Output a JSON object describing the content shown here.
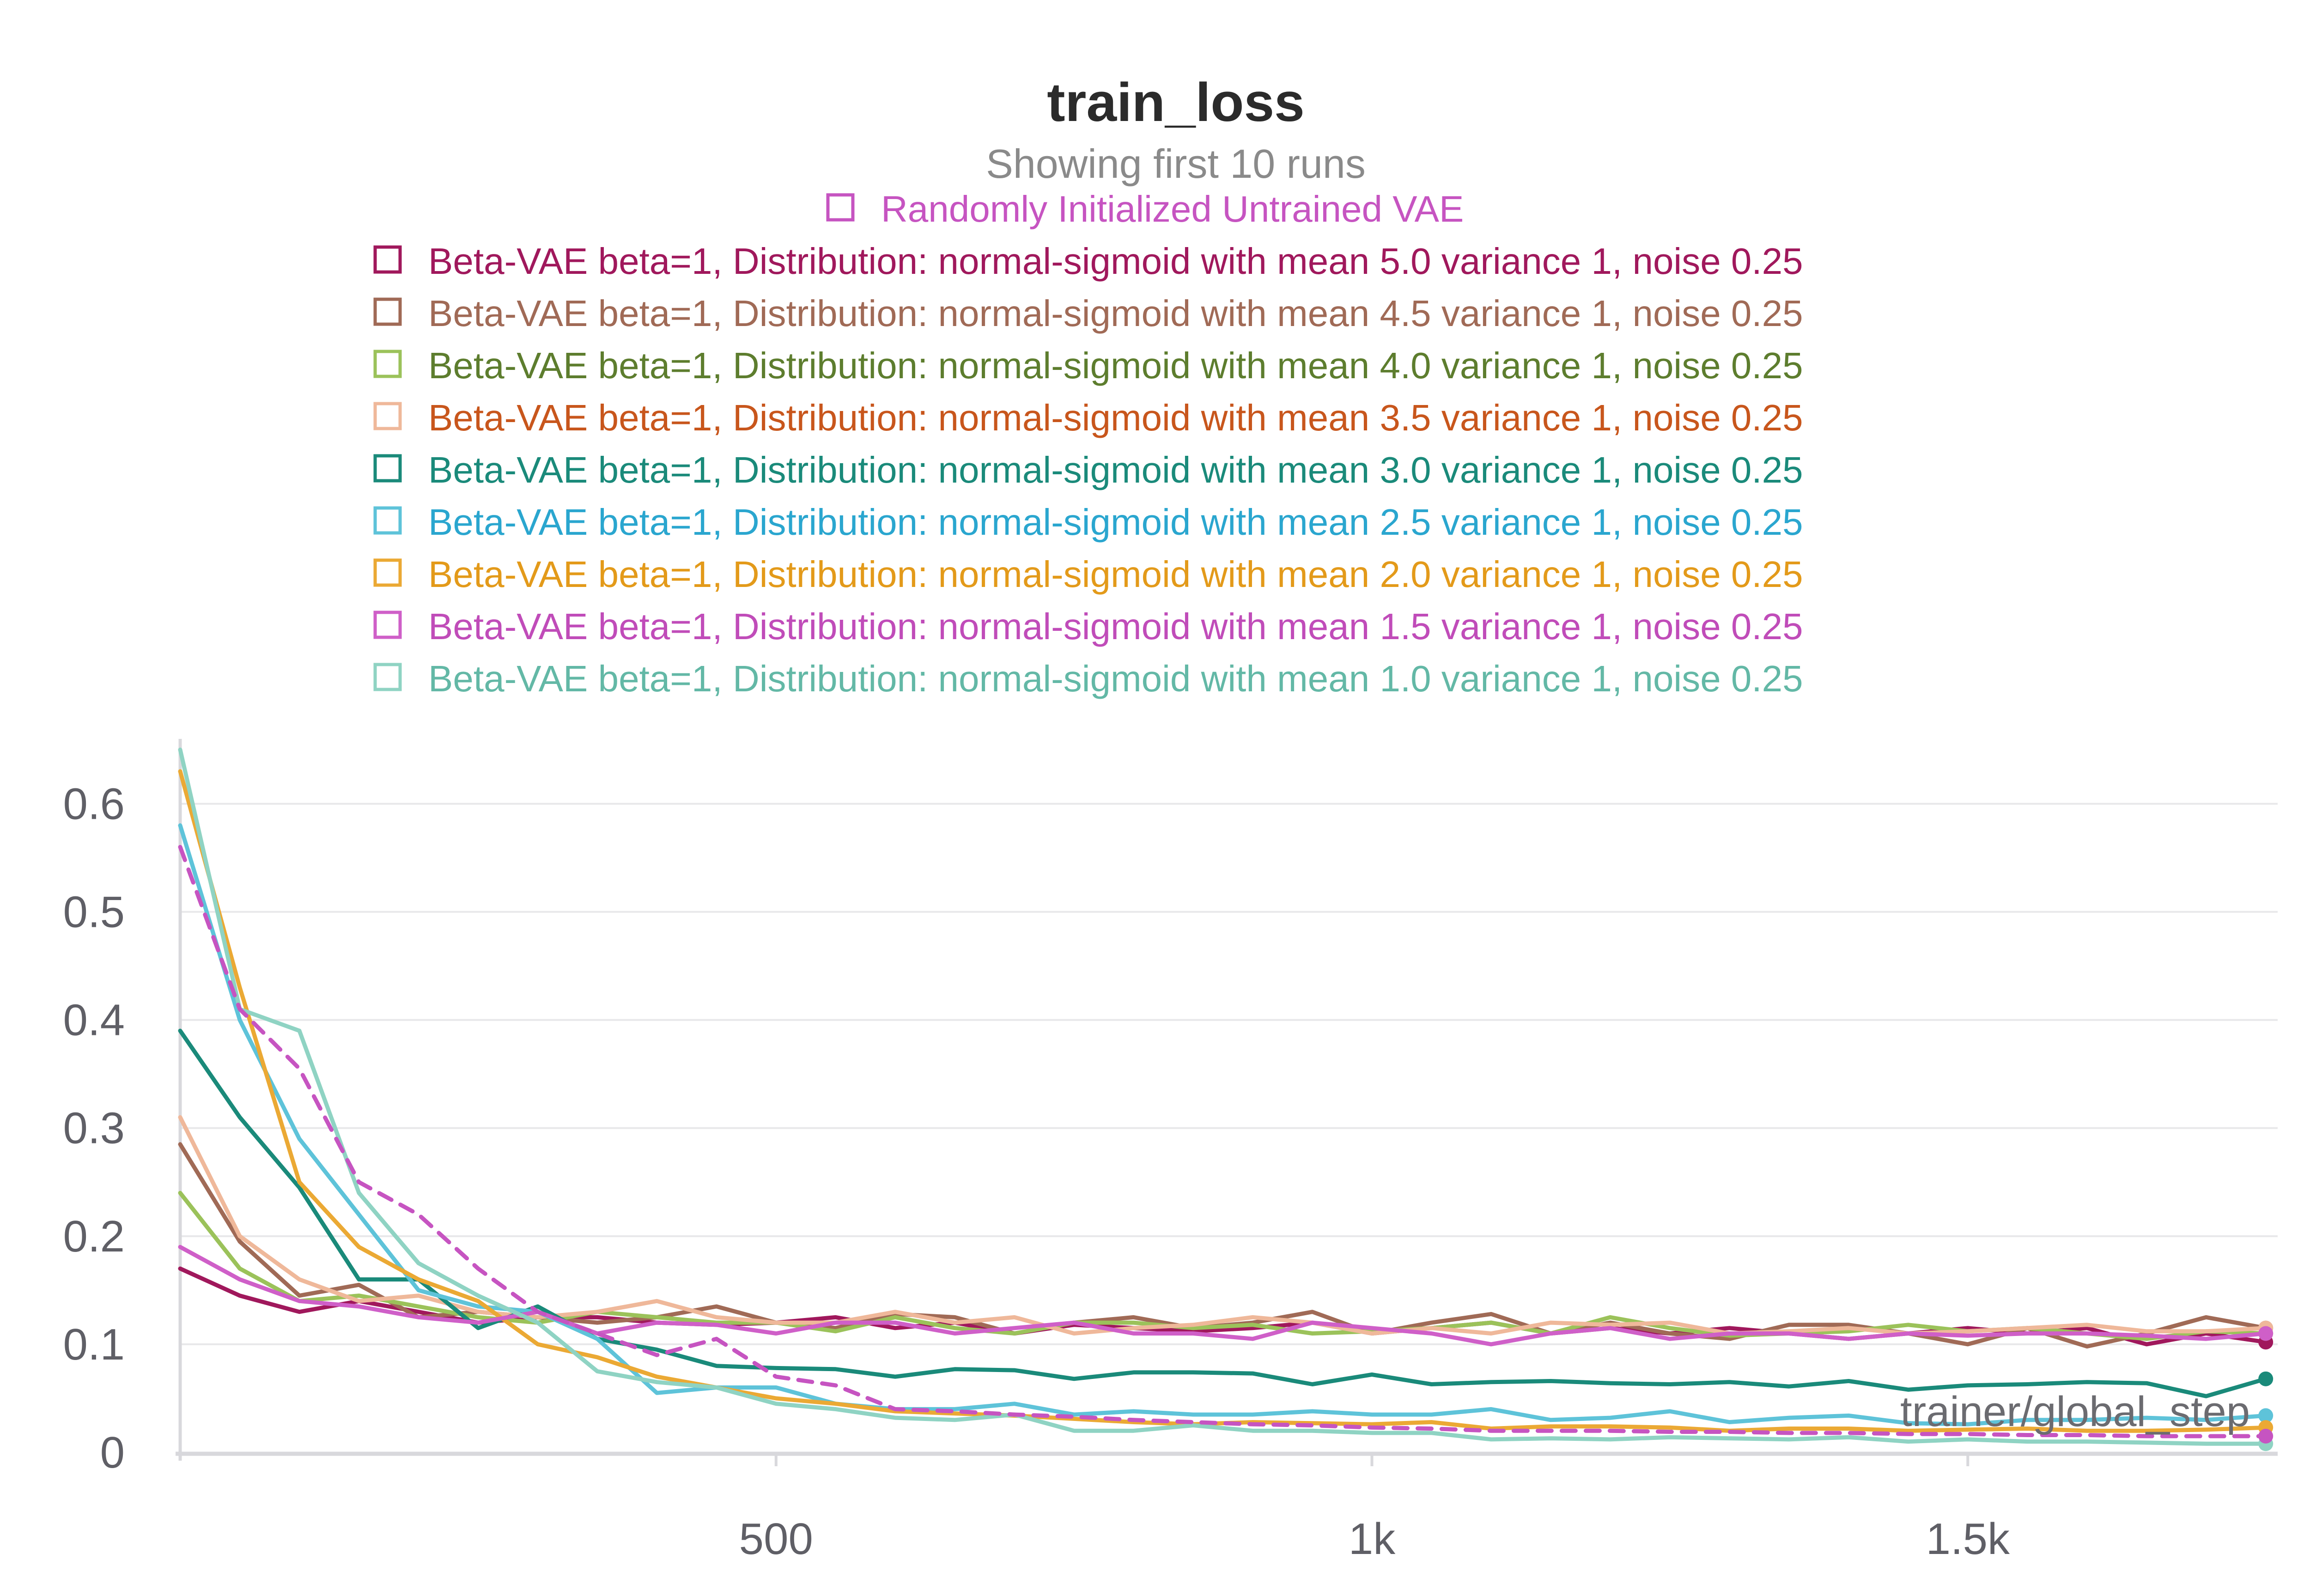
{
  "chart_data": {
    "type": "line",
    "title": "train_loss",
    "subtitle": "Showing first 10 runs",
    "xlabel": "trainer/global_step",
    "ylabel": "",
    "xlim": [
      0,
      1760
    ],
    "ylim": [
      0,
      0.66
    ],
    "x_ticks": [
      500,
      1000,
      1500
    ],
    "x_tick_labels": [
      "500",
      "1k",
      "1.5k"
    ],
    "y_ticks": [
      0,
      0.1,
      0.2,
      0.3,
      0.4,
      0.5,
      0.6
    ],
    "y_tick_labels": [
      "0",
      "0.1",
      "0.2",
      "0.3",
      "0.4",
      "0.5",
      "0.6"
    ],
    "grid": true,
    "legend_position": "top",
    "x": [
      0,
      50,
      100,
      150,
      200,
      250,
      300,
      350,
      400,
      450,
      500,
      550,
      600,
      650,
      700,
      750,
      800,
      850,
      900,
      950,
      1000,
      1050,
      1100,
      1150,
      1200,
      1250,
      1300,
      1350,
      1400,
      1450,
      1500,
      1550,
      1600,
      1650,
      1700,
      1750
    ],
    "series": [
      {
        "name": "Randomly Initialized Untrained VAE",
        "color": "#c654c1",
        "dashed": true,
        "values": [
          0.56,
          0.41,
          0.355,
          0.25,
          0.22,
          0.17,
          0.13,
          0.11,
          0.09,
          0.105,
          0.07,
          0.062,
          0.04,
          0.038,
          0.035,
          0.033,
          0.03,
          0.028,
          0.026,
          0.025,
          0.023,
          0.022,
          0.02,
          0.02,
          0.02,
          0.019,
          0.019,
          0.018,
          0.018,
          0.017,
          0.017,
          0.016,
          0.016,
          0.015,
          0.015,
          0.015
        ]
      },
      {
        "name": "Beta-VAE beta=1, Distribution: normal-sigmoid with mean 5.0 variance 1, noise 0.25",
        "color": "#a0185c",
        "dashed": false,
        "values": [
          0.17,
          0.145,
          0.13,
          0.14,
          0.13,
          0.12,
          0.125,
          0.125,
          0.12,
          0.118,
          0.12,
          0.125,
          0.115,
          0.12,
          0.11,
          0.118,
          0.115,
          0.112,
          0.115,
          0.12,
          0.11,
          0.115,
          0.12,
          0.11,
          0.115,
          0.11,
          0.115,
          0.11,
          0.105,
          0.11,
          0.115,
          0.11,
          0.115,
          0.1,
          0.11,
          0.102
        ]
      },
      {
        "name": "Beta-VAE beta=1, Distribution: normal-sigmoid with mean 4.5 variance 1, noise 0.25",
        "color": "#a06a56",
        "dashed": false,
        "values": [
          0.285,
          0.195,
          0.145,
          0.155,
          0.125,
          0.13,
          0.125,
          0.12,
          0.125,
          0.135,
          0.12,
          0.115,
          0.128,
          0.125,
          0.11,
          0.12,
          0.125,
          0.115,
          0.12,
          0.13,
          0.11,
          0.12,
          0.128,
          0.11,
          0.12,
          0.11,
          0.105,
          0.118,
          0.118,
          0.11,
          0.1,
          0.115,
          0.098,
          0.11,
          0.125,
          0.115
        ]
      },
      {
        "name": "Beta-VAE beta=1, Distribution: normal-sigmoid with mean 4.0 variance 1, noise 0.25",
        "color": "#9bc25a",
        "dashed": false,
        "values": [
          0.24,
          0.17,
          0.14,
          0.145,
          0.135,
          0.125,
          0.12,
          0.13,
          0.125,
          0.12,
          0.12,
          0.112,
          0.125,
          0.115,
          0.11,
          0.12,
          0.12,
          0.115,
          0.118,
          0.11,
          0.112,
          0.115,
          0.12,
          0.11,
          0.125,
          0.115,
          0.108,
          0.11,
          0.112,
          0.118,
          0.112,
          0.115,
          0.11,
          0.105,
          0.112,
          0.11
        ]
      },
      {
        "name": "Beta-VAE beta=1, Distribution: normal-sigmoid with mean 3.5 variance 1, noise 0.25",
        "color": "#efb89a",
        "dashed": false,
        "values": [
          0.31,
          0.2,
          0.16,
          0.14,
          0.145,
          0.13,
          0.125,
          0.13,
          0.14,
          0.125,
          0.12,
          0.12,
          0.13,
          0.12,
          0.125,
          0.11,
          0.115,
          0.118,
          0.125,
          0.12,
          0.11,
          0.115,
          0.11,
          0.12,
          0.118,
          0.12,
          0.11,
          0.112,
          0.115,
          0.11,
          0.112,
          0.115,
          0.118,
          0.112,
          0.112,
          0.115
        ]
      },
      {
        "name": "Beta-VAE beta=1, Distribution: normal-sigmoid with mean 3.0 variance 1, noise 0.25",
        "color": "#1a8a7a",
        "dashed": false,
        "values": [
          0.39,
          0.31,
          0.245,
          0.16,
          0.16,
          0.115,
          0.135,
          0.105,
          0.095,
          0.08,
          0.078,
          0.077,
          0.07,
          0.077,
          0.076,
          0.068,
          0.074,
          0.074,
          0.073,
          0.063,
          0.072,
          0.063,
          0.065,
          0.066,
          0.064,
          0.063,
          0.065,
          0.061,
          0.066,
          0.058,
          0.062,
          0.063,
          0.065,
          0.064,
          0.052,
          0.068
        ]
      },
      {
        "name": "Beta-VAE beta=1, Distribution: normal-sigmoid with mean 2.5 variance 1, noise 0.25",
        "color": "#5ec3d9",
        "dashed": false,
        "values": [
          0.58,
          0.4,
          0.29,
          0.22,
          0.15,
          0.135,
          0.13,
          0.105,
          0.055,
          0.06,
          0.06,
          0.045,
          0.04,
          0.04,
          0.045,
          0.035,
          0.038,
          0.035,
          0.035,
          0.038,
          0.035,
          0.035,
          0.04,
          0.03,
          0.032,
          0.038,
          0.028,
          0.032,
          0.034,
          0.027,
          0.026,
          0.03,
          0.03,
          0.032,
          0.03,
          0.034
        ]
      },
      {
        "name": "Beta-VAE beta=1, Distribution: normal-sigmoid with mean 2.0 variance 1, noise 0.25",
        "color": "#eba934",
        "dashed": false,
        "values": [
          0.63,
          0.43,
          0.25,
          0.19,
          0.16,
          0.14,
          0.1,
          0.088,
          0.07,
          0.06,
          0.05,
          0.045,
          0.038,
          0.036,
          0.034,
          0.031,
          0.028,
          0.026,
          0.028,
          0.027,
          0.026,
          0.028,
          0.022,
          0.024,
          0.024,
          0.023,
          0.02,
          0.022,
          0.022,
          0.02,
          0.021,
          0.022,
          0.02,
          0.02,
          0.021,
          0.023
        ]
      },
      {
        "name": "Beta-VAE beta=1, Distribution: normal-sigmoid with mean 1.5 variance 1, noise 0.25",
        "color": "#cf5fc8",
        "dashed": false,
        "values": [
          0.19,
          0.16,
          0.14,
          0.135,
          0.125,
          0.12,
          0.13,
          0.11,
          0.12,
          0.118,
          0.11,
          0.12,
          0.12,
          0.11,
          0.115,
          0.12,
          0.11,
          0.11,
          0.105,
          0.12,
          0.115,
          0.11,
          0.1,
          0.11,
          0.115,
          0.105,
          0.11,
          0.11,
          0.105,
          0.11,
          0.108,
          0.11,
          0.11,
          0.108,
          0.105,
          0.11
        ]
      },
      {
        "name": "Beta-VAE beta=1, Distribution: normal-sigmoid with mean 1.0 variance 1, noise 0.25",
        "color": "#8fd3c3",
        "dashed": false,
        "values": [
          0.65,
          0.41,
          0.39,
          0.24,
          0.175,
          0.145,
          0.12,
          0.075,
          0.065,
          0.06,
          0.045,
          0.04,
          0.032,
          0.03,
          0.035,
          0.02,
          0.02,
          0.025,
          0.02,
          0.02,
          0.018,
          0.018,
          0.012,
          0.013,
          0.012,
          0.014,
          0.013,
          0.012,
          0.014,
          0.01,
          0.012,
          0.01,
          0.01,
          0.009,
          0.008,
          0.008
        ]
      }
    ]
  },
  "legend": {
    "colors": [
      "#c654c1",
      "#a0185c",
      "#a06a56",
      "#5d7d2e",
      "#c8561c",
      "#1a8a7a",
      "#2aa6cf",
      "#e39a1a",
      "#c04cb9",
      "#63b8a6"
    ],
    "box_colors": [
      "#c654c1",
      "#a0185c",
      "#a06a56",
      "#9bc25a",
      "#efb89a",
      "#1a8a7a",
      "#5ec3d9",
      "#eba934",
      "#cf5fc8",
      "#8fd3c3"
    ]
  }
}
